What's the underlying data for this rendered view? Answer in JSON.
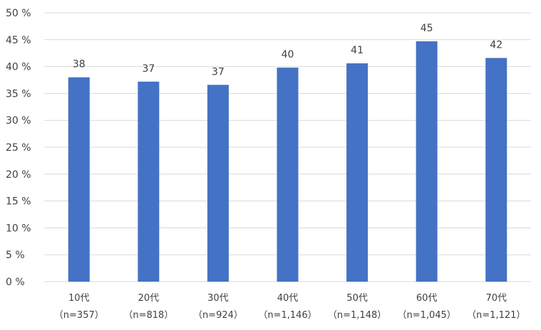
{
  "chart_data": {
    "type": "bar",
    "categories": [
      "10代",
      "20代",
      "30代",
      "40代",
      "50代",
      "60代",
      "70代"
    ],
    "category_sublabels": [
      "（n=357）",
      "（n=818）",
      "（n=924）",
      "（n=1,146）",
      "（n=1,148）",
      "（n=1,045）",
      "（n=1,121）"
    ],
    "values": [
      38.0,
      37.2,
      36.6,
      39.8,
      40.6,
      44.7,
      41.6
    ],
    "data_labels": [
      "38",
      "37",
      "37",
      "40",
      "41",
      "45",
      "42"
    ],
    "y_ticks": [
      "0 %",
      "5 %",
      "10 %",
      "15 %",
      "20 %",
      "25 %",
      "30 %",
      "35 %",
      "40 %",
      "45 %",
      "50 %"
    ],
    "ylim": [
      0,
      50
    ],
    "ytick_step": 5,
    "grid": true,
    "legend": "none",
    "bar_color": "#4472C4",
    "grid_color": "#D9D9D9",
    "text_color": "#404040"
  }
}
